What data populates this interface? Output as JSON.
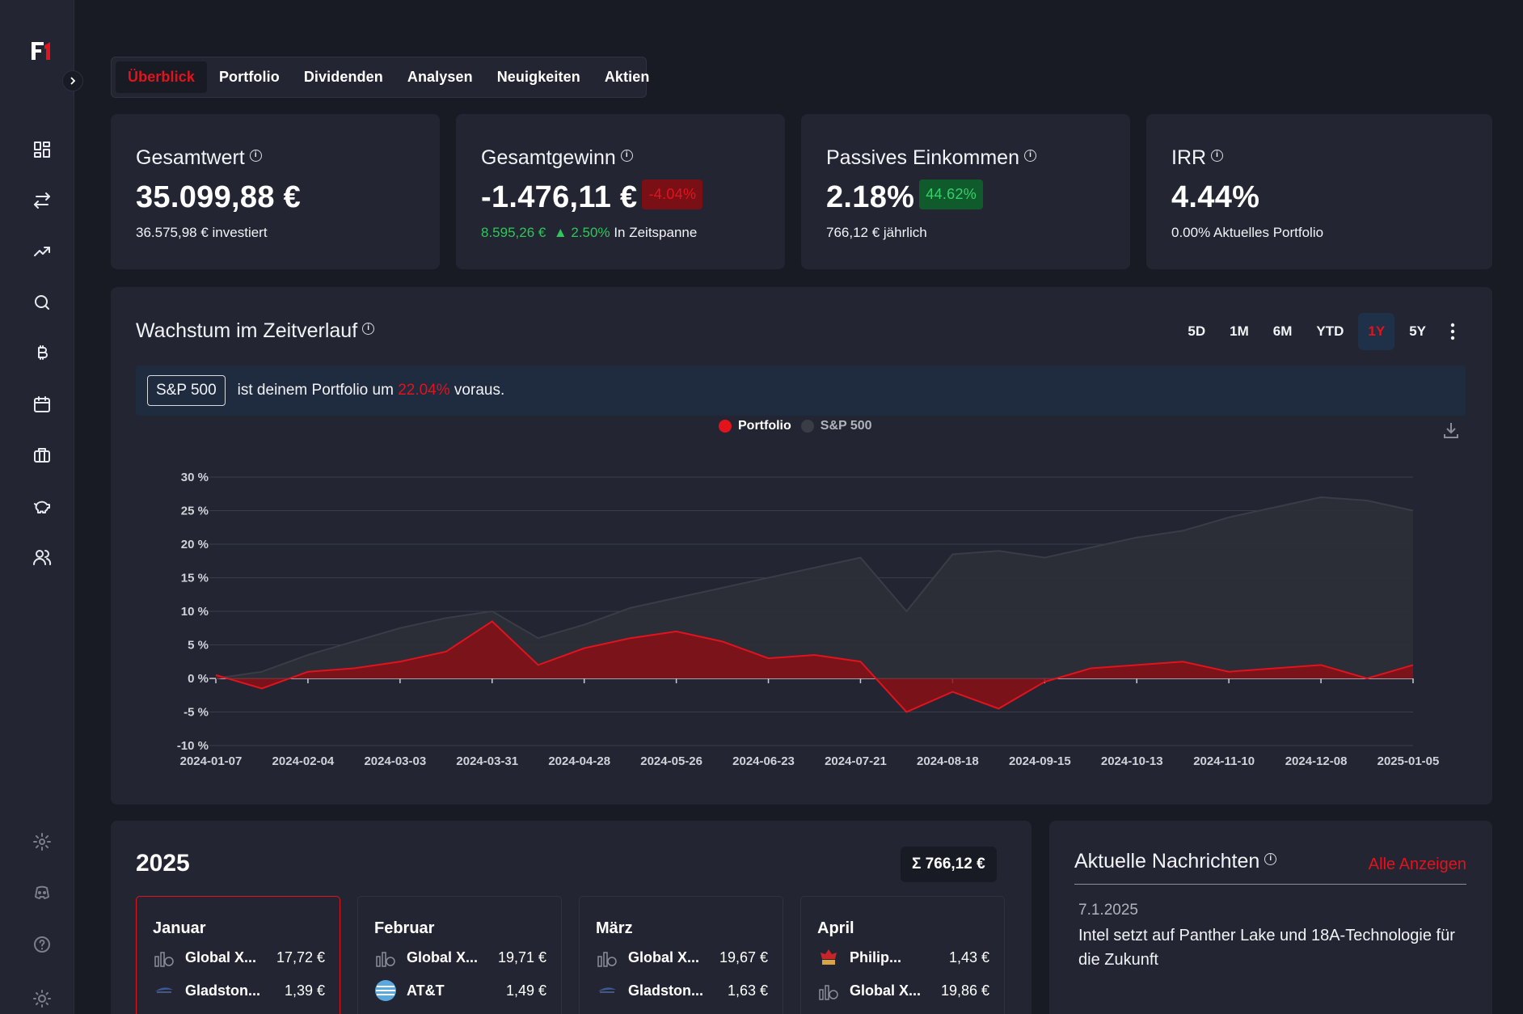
{
  "nav": {
    "tabs": [
      "Überblick",
      "Portfolio",
      "Dividenden",
      "Analysen",
      "Neuigkeiten",
      "Aktien"
    ],
    "active_tab": "Überblick",
    "sidebar_icons": [
      "dashboard-icon",
      "transfer-icon",
      "trending-icon",
      "search-icon",
      "bitcoin-icon",
      "calendar-icon",
      "briefcase-icon",
      "piggy-bank-icon",
      "users-icon",
      "settings-icon",
      "discord-icon",
      "help-icon",
      "theme-icon"
    ]
  },
  "kpis": {
    "total": {
      "label": "Gesamtwert",
      "value": "35.099,88 €",
      "sub": "36.575,98 € investiert"
    },
    "gain": {
      "label": "Gesamtgewinn",
      "value": "-1.476,11 €",
      "badge": "-4.04%",
      "sub_green": "8.595,26 €",
      "sub_pct": "▲ 2.50%",
      "sub_text": "In Zeitspanne"
    },
    "passive": {
      "label": "Passives Einkommen",
      "value": "2.18%",
      "badge": "44.62%",
      "sub": "766,12 € jährlich"
    },
    "irr": {
      "label": "IRR",
      "value": "4.44%",
      "sub": "0.00% Aktuelles Portfolio"
    }
  },
  "growth": {
    "title": "Wachstum im Zeitverlauf",
    "ranges": [
      "5D",
      "1M",
      "6M",
      "YTD",
      "1Y",
      "5Y"
    ],
    "active_range": "1Y",
    "compare_label": "S&P 500",
    "compare_text_1": "ist deinem Portfolio um",
    "compare_pct": "22.04%",
    "compare_text_2": "voraus.",
    "legend_portfolio": "Portfolio",
    "legend_sp": "S&P 500"
  },
  "chart_data": {
    "type": "area",
    "x_ticks": [
      "2024-01-07",
      "2024-02-04",
      "2024-03-03",
      "2024-03-31",
      "2024-04-28",
      "2024-05-26",
      "2024-06-23",
      "2024-07-21",
      "2024-08-18",
      "2024-09-15",
      "2024-10-13",
      "2024-11-10",
      "2024-12-08",
      "2025-01-05"
    ],
    "y_ticks": [
      "30 %",
      "25 %",
      "20 %",
      "15 %",
      "10 %",
      "5 %",
      "0 %",
      "-5 %",
      "-10 %"
    ],
    "ylim": [
      -10,
      30
    ],
    "x": [
      "2024-01-07",
      "2024-01-21",
      "2024-02-04",
      "2024-02-18",
      "2024-03-03",
      "2024-03-17",
      "2024-03-31",
      "2024-04-14",
      "2024-04-28",
      "2024-05-12",
      "2024-05-26",
      "2024-06-09",
      "2024-06-23",
      "2024-07-07",
      "2024-07-21",
      "2024-08-04",
      "2024-08-18",
      "2024-09-01",
      "2024-09-15",
      "2024-09-29",
      "2024-10-13",
      "2024-10-27",
      "2024-11-10",
      "2024-11-24",
      "2024-12-08",
      "2024-12-22",
      "2025-01-05"
    ],
    "series": [
      {
        "name": "Portfolio",
        "color": "#e2131c",
        "values": [
          0.5,
          -1.5,
          1.0,
          1.5,
          2.5,
          4.0,
          8.5,
          2.0,
          4.5,
          6.0,
          7.0,
          5.5,
          3.0,
          3.5,
          2.5,
          -5.0,
          -2.0,
          -4.5,
          -0.5,
          1.5,
          2.0,
          2.5,
          1.0,
          1.5,
          2.0,
          0.0,
          2.0
        ]
      },
      {
        "name": "S&P 500",
        "color": "#3a3d45",
        "values": [
          0.0,
          1.0,
          3.5,
          5.5,
          7.5,
          9.0,
          10.0,
          6.0,
          8.0,
          10.5,
          12.0,
          13.5,
          15.0,
          16.5,
          18.0,
          10.0,
          18.5,
          19.0,
          18.0,
          19.5,
          21.0,
          22.0,
          24.0,
          25.5,
          27.0,
          26.5,
          25.0
        ]
      }
    ]
  },
  "dividends": {
    "year": "2025",
    "sum": "Σ  766,12 €",
    "months": [
      {
        "name": "Januar",
        "rows": [
          {
            "icon": "etf-icon",
            "name": "Global X...",
            "amount": "17,72 €"
          },
          {
            "icon": "gladstone-icon",
            "name": "Gladston...",
            "amount": "1,39 €"
          }
        ]
      },
      {
        "name": "Februar",
        "rows": [
          {
            "icon": "etf-icon",
            "name": "Global X...",
            "amount": "19,71 €"
          },
          {
            "icon": "att-icon",
            "name": "AT&T",
            "amount": "1,49 €"
          }
        ]
      },
      {
        "name": "März",
        "rows": [
          {
            "icon": "etf-icon",
            "name": "Global X...",
            "amount": "19,67 €"
          },
          {
            "icon": "gladstone-icon",
            "name": "Gladston...",
            "amount": "1,63 €"
          }
        ]
      },
      {
        "name": "April",
        "rows": [
          {
            "icon": "philip-morris-icon",
            "name": "Philip...",
            "amount": "1,43 €"
          },
          {
            "icon": "etf-icon",
            "name": "Global X...",
            "amount": "19,86 €"
          }
        ]
      }
    ]
  },
  "news": {
    "title": "Aktuelle Nachrichten",
    "link": "Alle Anzeigen",
    "date": "7.1.2025",
    "headline": "Intel setzt auf Panther Lake und 18A-Technologie für die Zukunft"
  }
}
